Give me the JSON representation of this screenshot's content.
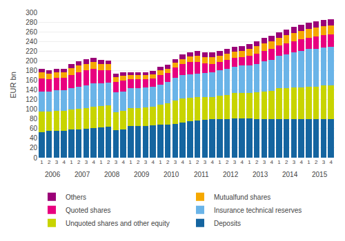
{
  "chart_data": {
    "type": "bar",
    "stacked": true,
    "ylabel": "EUR bn",
    "ylim": [
      0,
      300
    ],
    "yticks": [
      0,
      20,
      40,
      60,
      80,
      100,
      120,
      140,
      160,
      180,
      200,
      220,
      240,
      260,
      280,
      300
    ],
    "grid": true,
    "legend": "bottom",
    "categories": [
      "1",
      "2",
      "3",
      "4",
      "1",
      "2",
      "3",
      "4",
      "1",
      "2",
      "3",
      "4",
      "1",
      "2",
      "3",
      "4",
      "1",
      "2",
      "3",
      "4",
      "1",
      "2",
      "3",
      "4",
      "1",
      "2",
      "3",
      "4",
      "1",
      "2",
      "3",
      "4",
      "1",
      "2",
      "3",
      "4",
      "1",
      "2",
      "3",
      "4"
    ],
    "annotations": [
      {
        "text": "2006",
        "x": 1.5
      },
      {
        "text": "2007",
        "x": 5.5
      },
      {
        "text": "2008",
        "x": 9.5
      },
      {
        "text": "2009",
        "x": 13.5
      },
      {
        "text": "2010",
        "x": 17.5
      },
      {
        "text": "2011",
        "x": 21.5
      },
      {
        "text": "2012",
        "x": 25.5
      },
      {
        "text": "2013",
        "x": 29.5
      },
      {
        "text": "2014",
        "x": 33.5
      },
      {
        "text": "2015",
        "x": 37.5
      }
    ],
    "series": [
      {
        "name": "Deposits",
        "color": "#1565a0",
        "values": [
          52,
          55,
          56,
          56,
          58,
          59,
          60,
          61,
          63,
          64,
          57,
          58,
          65,
          65,
          66,
          67,
          68,
          68,
          70,
          72,
          76,
          77,
          78,
          79,
          80,
          80,
          81,
          81,
          81,
          80,
          80,
          80,
          80,
          80,
          80,
          80,
          79,
          79,
          79,
          79
        ]
      },
      {
        "name": "Unquoted shares and other equity",
        "color": "#c8d400",
        "values": [
          43,
          40,
          41,
          41,
          41,
          42,
          43,
          44,
          44,
          44,
          37,
          38,
          38,
          38,
          38,
          38,
          41,
          44,
          48,
          50,
          48,
          48,
          47,
          46,
          48,
          50,
          52,
          53,
          53,
          55,
          57,
          58,
          63,
          63,
          65,
          65,
          68,
          68,
          70,
          70
        ]
      },
      {
        "name": "Insurance technical reserves",
        "color": "#6ab4e8",
        "values": [
          42,
          42,
          43,
          43,
          44,
          45,
          47,
          48,
          47,
          47,
          41,
          41,
          41,
          41,
          41,
          41,
          42,
          44,
          47,
          48,
          48,
          49,
          50,
          51,
          52,
          54,
          55,
          56,
          57,
          59,
          62,
          64,
          67,
          70,
          73,
          75,
          77,
          78,
          79,
          80
        ]
      },
      {
        "name": "Quoted shares",
        "color": "#e8007f",
        "values": [
          27,
          25,
          25,
          25,
          28,
          30,
          30,
          30,
          27,
          26,
          22,
          22,
          18,
          18,
          17,
          18,
          20,
          19,
          21,
          23,
          25,
          23,
          20,
          18,
          18,
          18,
          18,
          18,
          20,
          21,
          22,
          22,
          22,
          23,
          23,
          24,
          24,
          25,
          25,
          25
        ]
      },
      {
        "name": "Mutualfund shares",
        "color": "#f5a800",
        "values": [
          12,
          11,
          11,
          11,
          14,
          14,
          14,
          14,
          13,
          12,
          10,
          10,
          8,
          8,
          8,
          8,
          9,
          9,
          10,
          11,
          12,
          13,
          13,
          13,
          13,
          13,
          13,
          13,
          14,
          15,
          15,
          16,
          16,
          17,
          17,
          18,
          18,
          19,
          19,
          19
        ]
      },
      {
        "name": "Others",
        "color": "#9b0077",
        "values": [
          8,
          8,
          8,
          8,
          9,
          9,
          9,
          9,
          8,
          8,
          7,
          7,
          7,
          7,
          7,
          7,
          7,
          8,
          8,
          9,
          9,
          10,
          10,
          10,
          10,
          10,
          10,
          10,
          10,
          11,
          11,
          11,
          11,
          12,
          12,
          12,
          13,
          13,
          13,
          13
        ]
      }
    ]
  }
}
